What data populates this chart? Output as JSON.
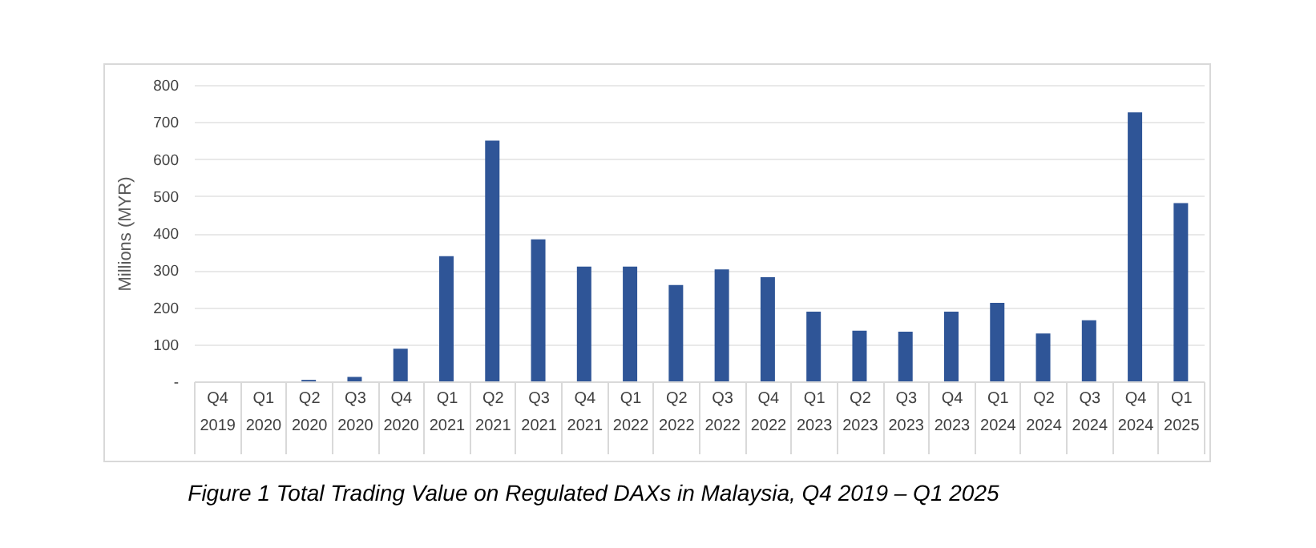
{
  "chart_data": {
    "type": "bar",
    "title": "Figure 1 Total Trading Value on Regulated DAXs in Malaysia, Q4 2019 – Q1 2025",
    "ylabel": "Millions (MYR)",
    "categories": [
      "Q4 2019",
      "Q1 2020",
      "Q2 2020",
      "Q3 2020",
      "Q4 2020",
      "Q1 2021",
      "Q2 2021",
      "Q3 2021",
      "Q4 2021",
      "Q1 2022",
      "Q2 2022",
      "Q3 2022",
      "Q4 2022",
      "Q1 2023",
      "Q2 2023",
      "Q3 2023",
      "Q4 2023",
      "Q1 2024",
      "Q2 2024",
      "Q3 2024",
      "Q4 2024",
      "Q1 2025"
    ],
    "values": [
      0,
      0,
      4,
      12,
      88,
      338,
      650,
      383,
      310,
      310,
      260,
      302,
      281,
      188,
      137,
      134,
      188,
      212,
      129,
      165,
      726,
      481
    ],
    "color": "#2f5597",
    "ylim": [
      0,
      800
    ],
    "yticks": [
      {
        "value": 0,
        "label": "-"
      },
      100,
      200,
      300,
      400,
      500,
      600,
      700,
      800
    ],
    "grid": "y"
  }
}
